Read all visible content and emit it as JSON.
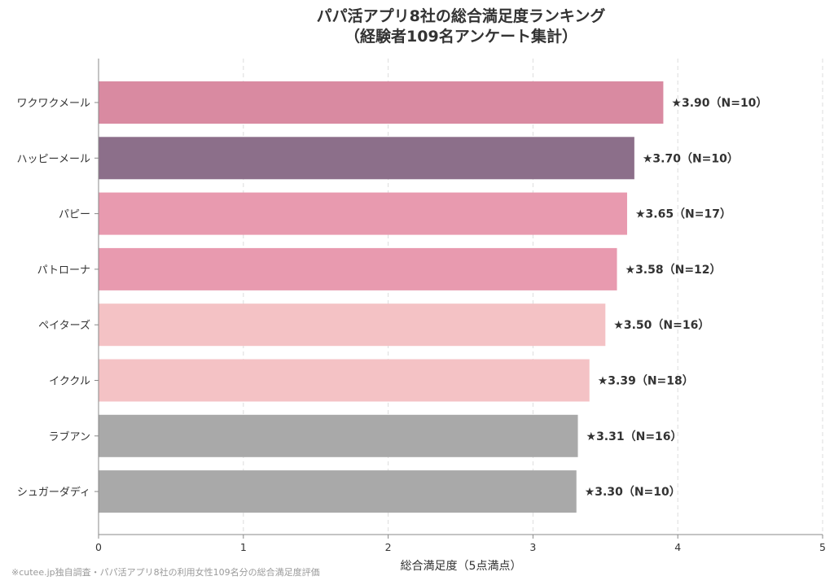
{
  "chart_data": {
    "type": "bar",
    "orientation": "horizontal",
    "title_lines": [
      "パパ活アプリ8社の総合満足度ランキング",
      "（経験者109名アンケート集計）"
    ],
    "xlabel": "総合満足度（5点満点）",
    "ylabel": "",
    "xlim": [
      0,
      5
    ],
    "xticks": [
      0,
      1,
      2,
      3,
      4,
      5
    ],
    "grid": "x-dashed",
    "categories": [
      "ワクワクメール",
      "ハッピーメール",
      "パピー",
      "パトローナ",
      "ペイターズ",
      "イククル",
      "ラブアン",
      "シュガーダディ"
    ],
    "values": [
      3.9,
      3.7,
      3.65,
      3.58,
      3.5,
      3.39,
      3.31,
      3.3
    ],
    "data_labels": [
      "★3.90（N=10）",
      "★3.70（N=10）",
      "★3.65（N=17）",
      "★3.58（N=12）",
      "★3.50（N=16）",
      "★3.39（N=18）",
      "★3.31（N=16）",
      "★3.30（N=10）"
    ],
    "bar_colors": [
      "#d98aa1",
      "#8c6f8a",
      "#e89aaf",
      "#e89aaf",
      "#f4c2c5",
      "#f4c2c5",
      "#a9a9a9",
      "#a9a9a9"
    ],
    "footnote": "※cutee.jp独自調査・パパ活アプリ8社の利用女性109名分の総合満足度評価"
  }
}
